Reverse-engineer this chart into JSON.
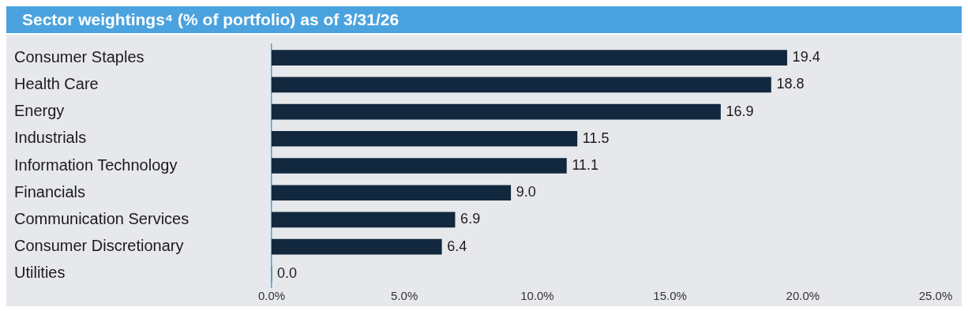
{
  "chart_data": {
    "type": "bar",
    "orientation": "horizontal",
    "title": "Sector weightings⁴ (% of portfolio) as of 3/31/26",
    "categories": [
      "Consumer Staples",
      "Health Care",
      "Energy",
      "Industrials",
      "Information Technology",
      "Financials",
      "Communication Services",
      "Consumer Discretionary",
      "Utilities"
    ],
    "values": [
      19.4,
      18.8,
      16.9,
      11.5,
      11.1,
      9.0,
      6.9,
      6.4,
      0.0
    ],
    "value_labels": [
      "19.4",
      "18.8",
      "16.9",
      "11.5",
      "11.1",
      "9.0",
      "6.9",
      "6.4",
      "0.0"
    ],
    "color": "#12283f",
    "xlim": [
      0,
      25
    ],
    "xticks": [
      {
        "value": 0,
        "label": "0.0%"
      },
      {
        "value": 5,
        "label": "5.0%"
      },
      {
        "value": 10,
        "label": "10.0%"
      },
      {
        "value": 15,
        "label": "15.0%"
      },
      {
        "value": 20,
        "label": "20.0%"
      },
      {
        "value": 25,
        "label": "25.0%"
      }
    ],
    "grid": false,
    "legend": false
  }
}
